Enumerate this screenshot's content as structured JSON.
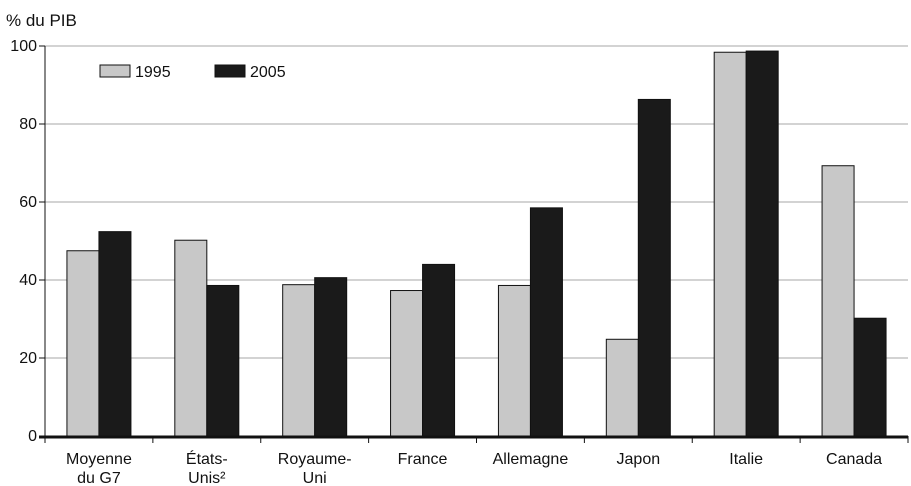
{
  "chart_data": {
    "type": "bar",
    "ylabel": "% du PIB",
    "ylim": [
      0,
      100
    ],
    "yticks": [
      0,
      20,
      40,
      60,
      80,
      100
    ],
    "grid": true,
    "legend_position": "top-left",
    "categories": [
      [
        "Moyenne",
        "du G7"
      ],
      [
        "États-",
        "Unis²"
      ],
      [
        "Royaume-",
        "Uni"
      ],
      [
        "France"
      ],
      [
        "Allemagne"
      ],
      [
        "Japon"
      ],
      [
        "Italie"
      ],
      [
        "Canada"
      ]
    ],
    "series": [
      {
        "name": "1995",
        "color": "#c8c8c8",
        "values": [
          47.5,
          50.2,
          38.8,
          37.3,
          38.6,
          24.8,
          98.4,
          69.3
        ]
      },
      {
        "name": "2005",
        "color": "#1a1a1a",
        "values": [
          52.4,
          38.6,
          40.6,
          44.0,
          58.5,
          86.3,
          98.7,
          30.2
        ]
      }
    ]
  }
}
